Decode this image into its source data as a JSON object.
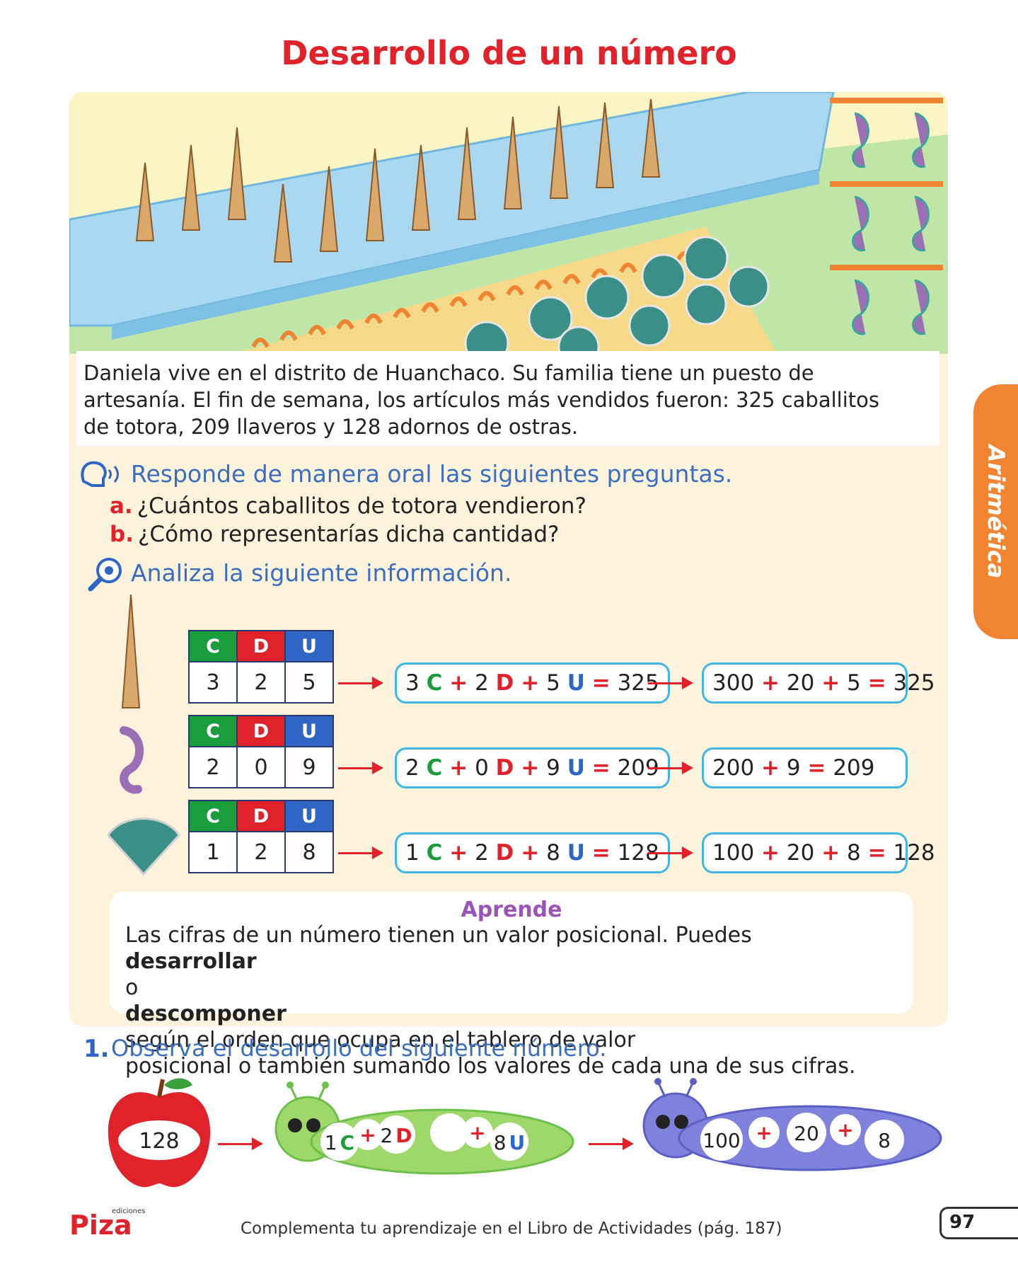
{
  "title": "Desarrollo de un número",
  "story_lines": [
    "Daniela vive en el distrito de Huanchaco. Su familia tiene un puesto de",
    "artesanía. El fin de semana, los artículos más vendidos fueron: 325 caballitos",
    "de totora, 209 llaveros y 128 adornos de ostras."
  ],
  "sidebar_label": "Aritmética",
  "oral": {
    "heading": "Responde de manera oral las siguientes preguntas.",
    "questions": [
      {
        "letter": "a.",
        "text": "¿Cuántos caballitos de totora vendieron?"
      },
      {
        "letter": "b.",
        "text": "¿Cómo representarías dicha cantidad?"
      }
    ]
  },
  "analyze_heading": "Analiza la siguiente información.",
  "headers": {
    "c": "C",
    "d": "D",
    "u": "U"
  },
  "rows": [
    {
      "c": "3",
      "d": "2",
      "u": "5",
      "total": "325",
      "expanded": [
        "300",
        "20",
        "5"
      ]
    },
    {
      "c": "2",
      "d": "0",
      "u": "9",
      "total": "209",
      "expanded": [
        "200",
        "9"
      ]
    },
    {
      "c": "1",
      "d": "2",
      "u": "8",
      "total": "128",
      "expanded": [
        "100",
        "20",
        "8"
      ]
    }
  ],
  "symbols": {
    "plus": "+",
    "equals": "="
  },
  "aprende": {
    "title": "Aprende",
    "line1_a": "Las cifras de un número tienen un valor posicional. Puedes ",
    "line1_b": "desarrollar",
    "line2_a": "o ",
    "line2_b": "descomponer",
    "line2_c": " según el orden que ocupa en el tablero de valor",
    "line3": "posicional o también sumando los valores de cada una de sus cifras."
  },
  "exercise": {
    "number": "1.",
    "text": "Observa el desarrollo del siguiente número.",
    "apple_value": "128",
    "green": {
      "n1": "1",
      "l1": "C",
      "n2": "2",
      "l2": "D",
      "n3": "8",
      "l3": "U"
    },
    "blue": [
      "100",
      "20",
      "8"
    ]
  },
  "footer_text": "Complementa tu aprendizaje en el Libro de Actividades (pág. 187)",
  "page_number": "97",
  "logo": {
    "word": "Piza",
    "small": "ediciones"
  },
  "colors": {
    "title": "#e0232b",
    "accent_blue": "#3a6fbf",
    "green": "#1a9d3b",
    "red": "#e0232b",
    "blue": "#2f66c6",
    "purple": "#9a54b8",
    "orange": "#f08431"
  }
}
